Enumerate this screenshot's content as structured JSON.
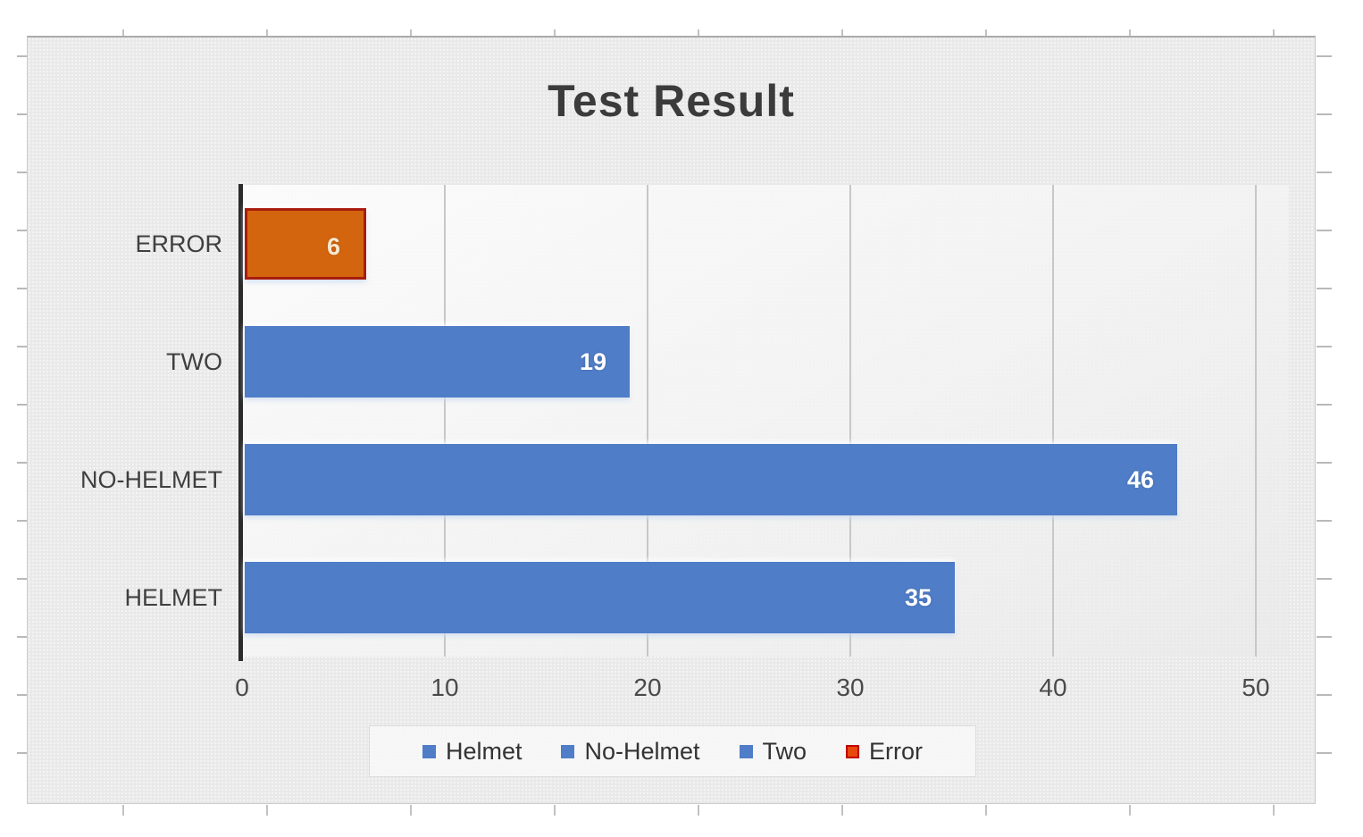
{
  "chart_data": {
    "type": "bar",
    "orientation": "horizontal",
    "title": "Test Result",
    "xlabel": "",
    "ylabel": "",
    "categories": [
      "ERROR",
      "TWO",
      "NO-HELMET",
      "HELMET"
    ],
    "values": [
      6,
      19,
      46,
      35
    ],
    "bar_colors": [
      "#d4650f",
      "#4f7dc8",
      "#4f7dc8",
      "#4f7dc8"
    ],
    "bar_border_colors": [
      "#a81d0e",
      "",
      "",
      ""
    ],
    "value_label_colors": [
      "#f6e9cf",
      "#ffffff",
      "#ffffff",
      "#ffffff"
    ],
    "xlim": [
      0,
      51.6
    ],
    "xticks": [
      0,
      10,
      20,
      30,
      40,
      50
    ],
    "grid": "vertical-gridlines-on",
    "legend_position": "bottom",
    "legend": [
      {
        "label": "Helmet",
        "color": "#4f7dc8",
        "border": "#4f7dc8"
      },
      {
        "label": "No-Helmet",
        "color": "#4f7dc8",
        "border": "#4f7dc8"
      },
      {
        "label": "Two",
        "color": "#4f7dc8",
        "border": "#4f7dc8"
      },
      {
        "label": "Error",
        "color": "#e8470e",
        "border": "#c00000"
      }
    ]
  },
  "colors": {
    "series_blue": "#4f7dc8",
    "series_error_fill": "#d4650f",
    "series_error_border": "#a81d0e",
    "axis_line": "#2b2b2b",
    "gridline": "#c7c7c7",
    "chart_background": "#e9e9e9",
    "title_text": "#3b3b3b"
  }
}
